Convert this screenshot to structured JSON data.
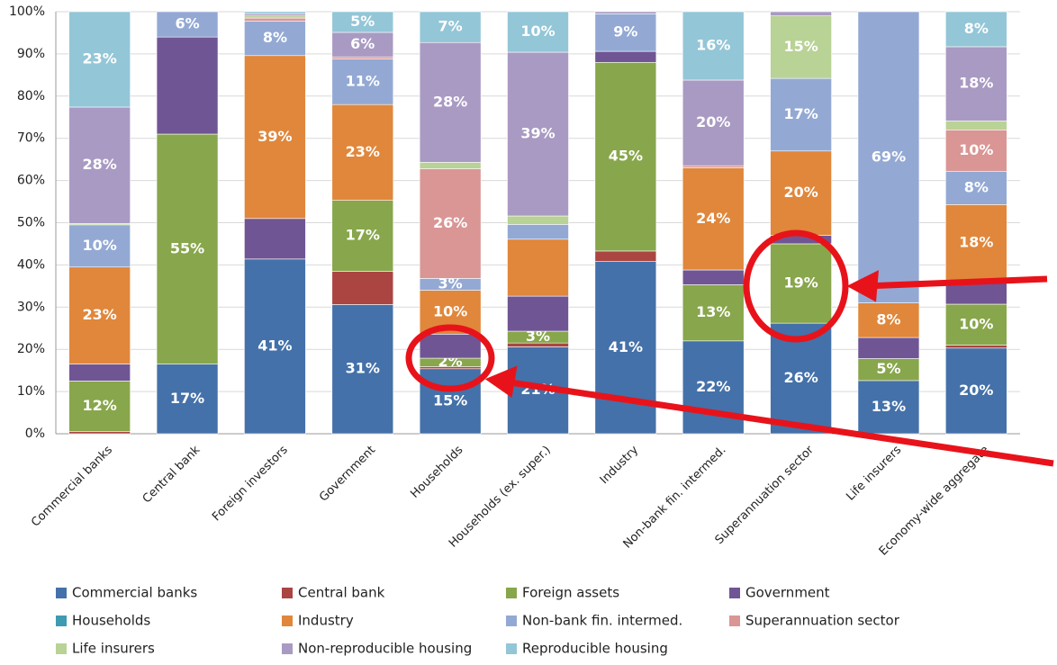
{
  "chart_data": {
    "type": "stacked_bar",
    "categories": [
      "Commercial banks",
      "Central bank",
      "Foreign investors",
      "Government",
      "Households",
      "Households (ex. super.)",
      "Industry",
      "Non-bank fin. intermed.",
      "Superannuation sector",
      "Life insurers",
      "Economy-wide aggregate"
    ],
    "series": [
      {
        "name": "Commercial banks",
        "color": "#4471a9",
        "values": [
          0,
          16.5,
          41.4,
          30.6,
          15.4,
          20.6,
          40.8,
          22,
          26.2,
          12.6,
          20.3
        ],
        "value_labels": [
          null,
          "17%",
          "41%",
          "31%",
          "15%",
          "21%",
          "41%",
          "22%",
          "26%",
          "13%",
          "20%"
        ]
      },
      {
        "name": "Central bank",
        "color": "#aa4542",
        "values": [
          0.5,
          0,
          0,
          7.9,
          0.5,
          0.9,
          2.5,
          0,
          0,
          0,
          0.7
        ]
      },
      {
        "name": "Foreign assets",
        "color": "#88a64b",
        "values": [
          12,
          54.5,
          0,
          16.8,
          2,
          2.8,
          44.7,
          13.3,
          18.8,
          5.2,
          9.7
        ],
        "value_labels": [
          "12%",
          "55%",
          null,
          "17%",
          "2%",
          "3%",
          "45%",
          "13%",
          "19%",
          "5%",
          "10%"
        ]
      },
      {
        "name": "Government",
        "color": "#705594",
        "values": [
          4,
          23,
          9.6,
          0,
          5.7,
          8.3,
          2.6,
          3.5,
          2,
          5,
          5.3
        ]
      },
      {
        "name": "Households",
        "color": "#3f9bb1",
        "values": [
          0,
          0,
          0,
          0,
          0,
          0,
          0,
          0,
          0,
          0,
          0
        ]
      },
      {
        "name": "Industry",
        "color": "#e0873b",
        "values": [
          23,
          0,
          38.6,
          22.7,
          10.4,
          13.5,
          0,
          24.2,
          20,
          8.2,
          18.3
        ],
        "value_labels": [
          "23%",
          null,
          "39%",
          "23%",
          "10%",
          null,
          null,
          "24%",
          "20%",
          "8%",
          "18%"
        ]
      },
      {
        "name": "Non-bank fin. intermed.",
        "color": "#93a9d4",
        "values": [
          10,
          6,
          8.2,
          10.8,
          2.8,
          3.5,
          8.9,
          0,
          17.2,
          69,
          7.9
        ],
        "value_labels": [
          "10%",
          "6%",
          "8%",
          "11%",
          "3%",
          null,
          "9%",
          null,
          "17%",
          "69%",
          "8%"
        ]
      },
      {
        "name": "Superannuation sector",
        "color": "#d99694",
        "values": [
          0,
          0,
          0.7,
          0.5,
          26,
          0,
          0,
          0.5,
          0,
          0,
          9.8
        ],
        "value_labels": [
          null,
          null,
          null,
          null,
          "26%",
          null,
          null,
          null,
          null,
          null,
          "10%"
        ]
      },
      {
        "name": "Life insurers",
        "color": "#b9d295",
        "values": [
          0.3,
          0,
          0.5,
          0,
          1.5,
          2,
          0,
          0,
          14.8,
          0,
          2.1
        ],
        "value_labels": [
          null,
          null,
          null,
          null,
          null,
          null,
          null,
          null,
          "15%",
          null,
          null
        ]
      },
      {
        "name": "Non-reproducible housing",
        "color": "#a99ac3",
        "values": [
          27.6,
          0,
          0.5,
          5.8,
          28.4,
          38.8,
          0.5,
          20.3,
          1,
          0,
          17.6
        ],
        "value_labels": [
          "28%",
          null,
          null,
          "6%",
          "28%",
          "39%",
          null,
          "20%",
          null,
          null,
          "18%"
        ]
      },
      {
        "name": "Reproducible housing",
        "color": "#93c6d7",
        "values": [
          22.6,
          0,
          0.5,
          4.9,
          7.3,
          9.6,
          0,
          16.2,
          0,
          0,
          8.3
        ],
        "value_labels": [
          "23%",
          null,
          null,
          "5%",
          "7%",
          "10%",
          null,
          "16%",
          null,
          null,
          "8%"
        ]
      }
    ],
    "ylim": [
      0,
      100
    ],
    "yticks": [
      {
        "value": 0,
        "label": "0%"
      },
      {
        "value": 10,
        "label": "10%"
      },
      {
        "value": 20,
        "label": "20%"
      },
      {
        "value": 30,
        "label": "30%"
      },
      {
        "value": 40,
        "label": "40%"
      },
      {
        "value": 50,
        "label": "50%"
      },
      {
        "value": 60,
        "label": "60%"
      },
      {
        "value": 70,
        "label": "70%"
      },
      {
        "value": 80,
        "label": "80%"
      },
      {
        "value": 90,
        "label": "90%"
      },
      {
        "value": 100,
        "label": "100%"
      }
    ],
    "grid": true
  }
}
